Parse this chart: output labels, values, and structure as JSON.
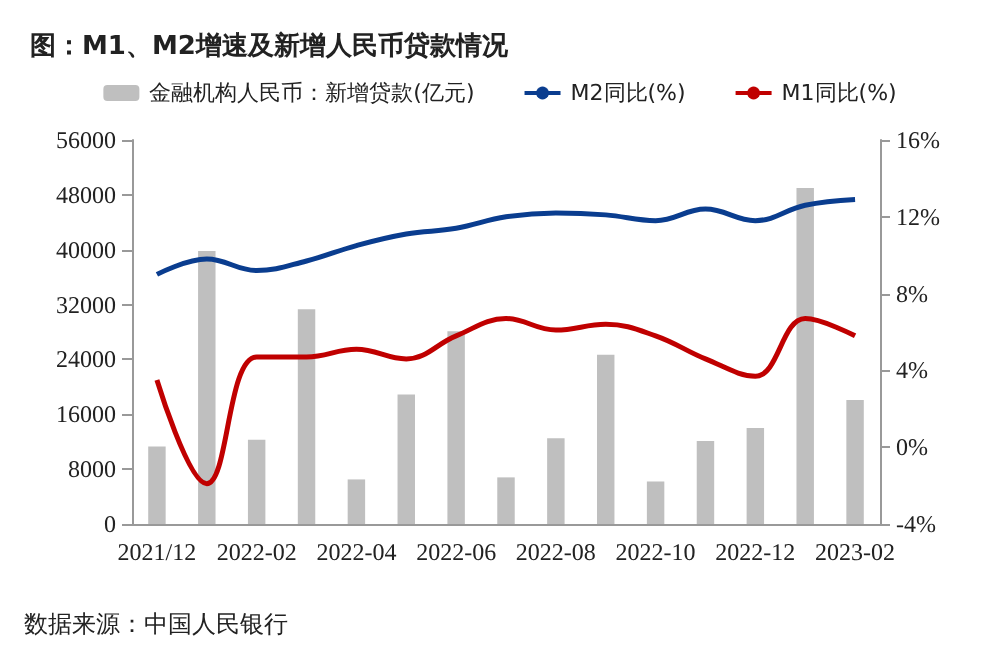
{
  "chart_data": {
    "type": "bar",
    "title": "图：M1、M2增速及新增人民币贷款情况",
    "categories": [
      "2021/12",
      null,
      "2022-02",
      null,
      "2022-04",
      null,
      "2022-06",
      null,
      "2022-08",
      null,
      "2022-10",
      null,
      "2022-12",
      null,
      "2023-02"
    ],
    "series": [
      {
        "name": "金融机构人民币：新增贷款(亿元)",
        "color": "#bfbfbf",
        "values": [
          11300,
          39800,
          12300,
          31300,
          6500,
          18900,
          28100,
          6800,
          12500,
          24700,
          6200,
          12100,
          14000,
          49000,
          18100
        ]
      },
      {
        "name": "M2同比(%)",
        "type": "line",
        "axis": "y2",
        "color": "#0a3d8f",
        "values": [
          9.0,
          9.8,
          9.2,
          9.7,
          10.5,
          11.1,
          11.4,
          12.0,
          12.2,
          12.1,
          11.8,
          12.4,
          11.8,
          12.6,
          12.9
        ]
      },
      {
        "name": "M1同比(%)",
        "type": "line",
        "axis": "y2",
        "color": "#c00000",
        "values": [
          3.5,
          -1.9,
          4.7,
          4.7,
          5.1,
          4.6,
          5.8,
          6.7,
          6.1,
          6.4,
          5.8,
          4.6,
          3.7,
          6.7,
          5.8
        ]
      }
    ],
    "ylim": [
      0,
      56000
    ],
    "yticks": [
      0,
      8000,
      16000,
      24000,
      32000,
      40000,
      48000,
      56000
    ],
    "y2lim": [
      -4,
      16
    ],
    "y2ticks": [
      {
        "value": -4,
        "label": "-4%"
      },
      {
        "value": 0,
        "label": "0%"
      },
      {
        "value": 4,
        "label": "4%"
      },
      {
        "value": 8,
        "label": "8%"
      },
      {
        "value": 12,
        "label": "12%"
      },
      {
        "value": 16,
        "label": "16%"
      }
    ],
    "grid": false,
    "legend": "top",
    "marker": "none",
    "annotations": [
      "数据来源：中国人民银行"
    ]
  }
}
